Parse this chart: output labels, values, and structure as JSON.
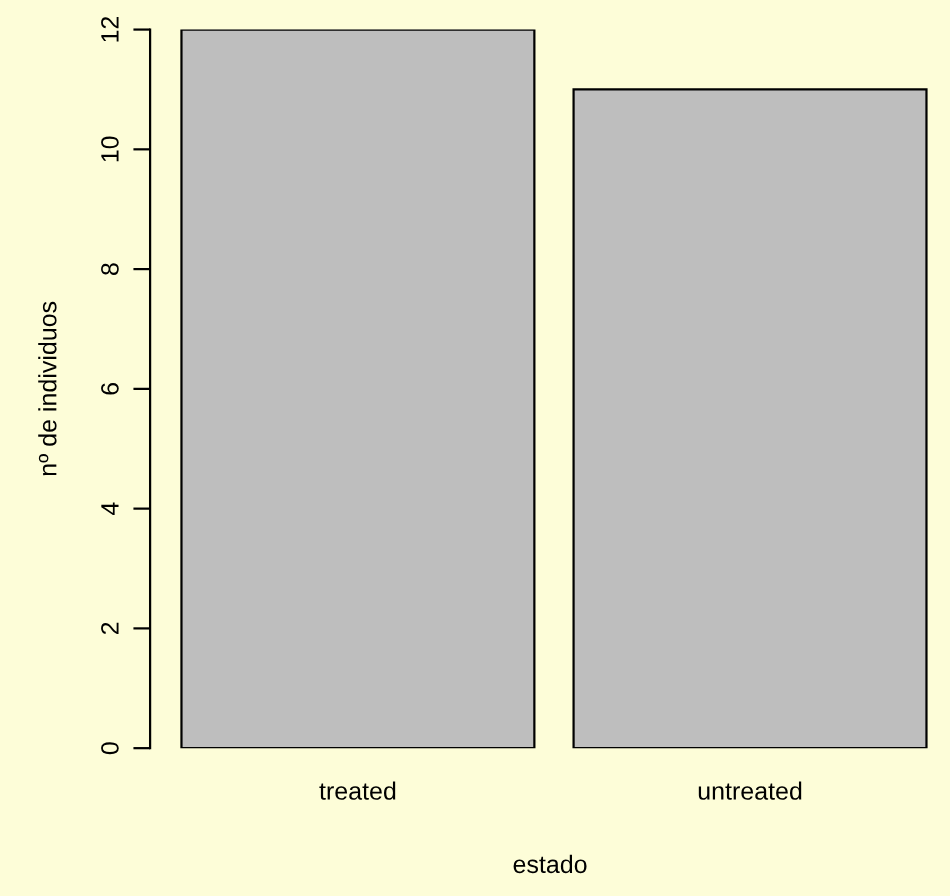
{
  "chart_data": {
    "type": "bar",
    "xlabel": "estado",
    "ylabel": "nº de individuos",
    "categories": [
      "treated",
      "untreated"
    ],
    "series": [
      {
        "color": "#bebebe",
        "values": [
          12,
          11
        ]
      }
    ],
    "ylim": [
      0,
      12
    ],
    "yticks": [
      0,
      2,
      4,
      6,
      8,
      10,
      12
    ],
    "grid": false,
    "legend": false
  }
}
